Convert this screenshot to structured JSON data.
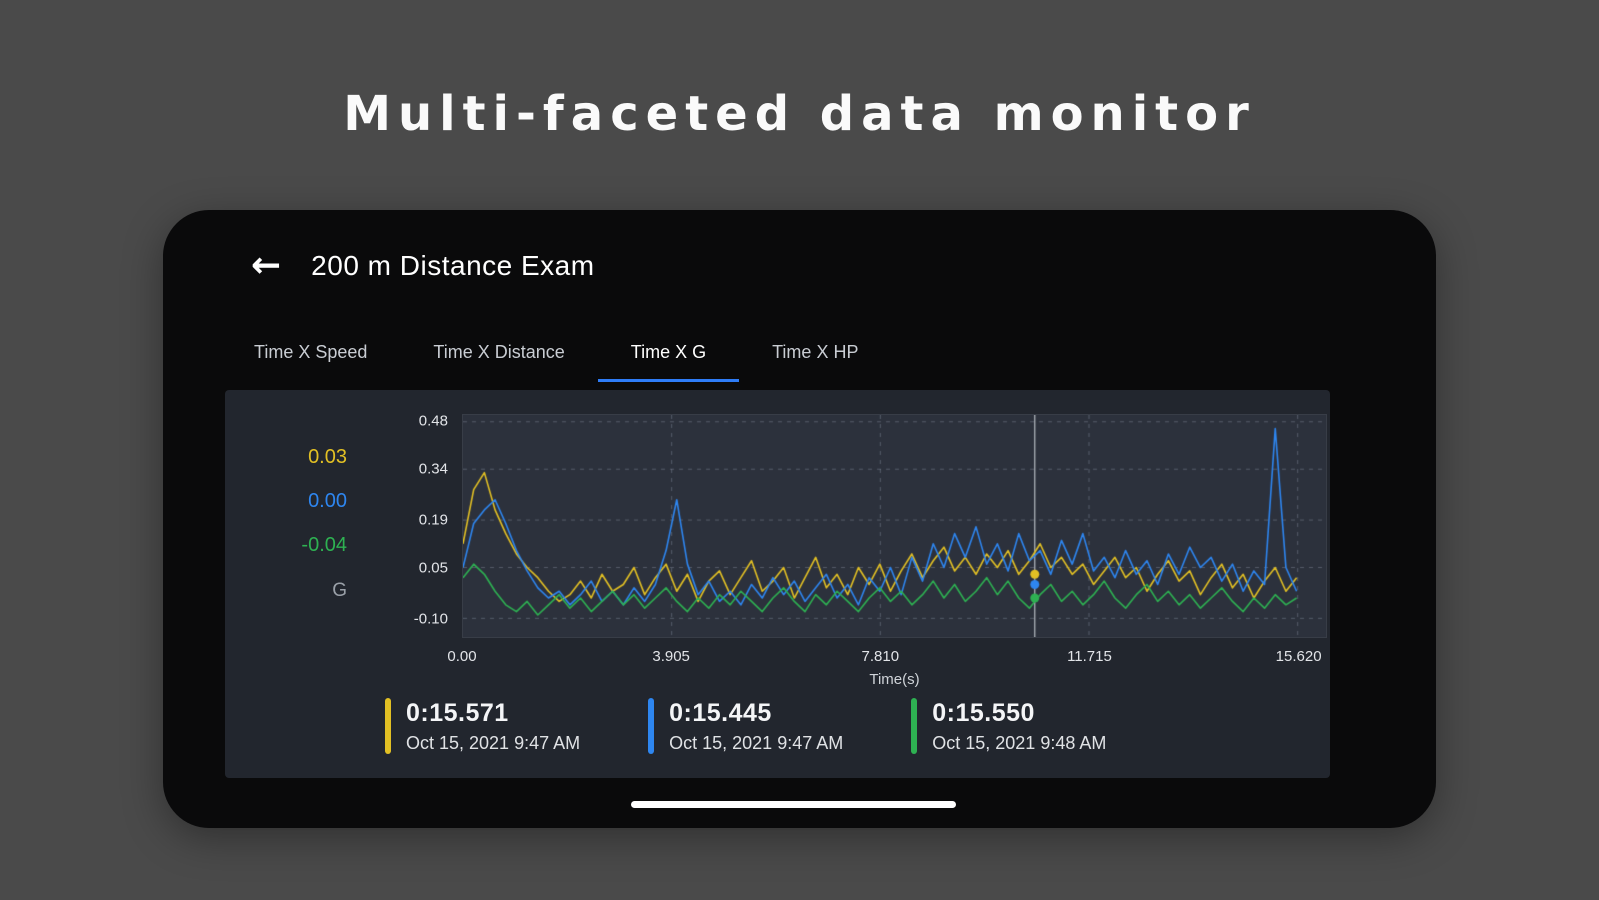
{
  "page": {
    "title": "Multi-faceted data monitor"
  },
  "phone": {
    "header": {
      "back_icon": "←",
      "title": "200 m Distance Exam"
    },
    "tabs": [
      {
        "label": "Time X Speed",
        "active": false
      },
      {
        "label": "Time X Distance",
        "active": false
      },
      {
        "label": "Time X G",
        "active": true
      },
      {
        "label": "Time X HP",
        "active": false
      }
    ],
    "tab_accent_color": "#2e7cf6",
    "readout": {
      "values": [
        {
          "label": "0.03",
          "color": "#e2c024"
        },
        {
          "label": "0.00",
          "color": "#2e86f0"
        },
        {
          "label": "-0.04",
          "color": "#2eb152"
        }
      ],
      "unit": "G"
    },
    "legend": [
      {
        "time": "0:15.571",
        "date": "Oct 15, 2021 9:47 AM",
        "color": "#e2c024"
      },
      {
        "time": "0:15.445",
        "date": "Oct 15, 2021 9:47 AM",
        "color": "#2e86f0"
      },
      {
        "time": "0:15.550",
        "date": "Oct 15, 2021 9:48 AM",
        "color": "#2eb152"
      }
    ]
  },
  "chart_data": {
    "type": "line",
    "title": "",
    "xlabel": "Time(s)",
    "ylabel": "G",
    "xlim": [
      0,
      16.15
    ],
    "ylim": [
      -0.155,
      0.5
    ],
    "grid": true,
    "legend_position": "bottom",
    "x_ticks": [
      0,
      3.905,
      7.81,
      11.715,
      15.62
    ],
    "x_tick_labels": [
      "0.00",
      "3.905",
      "7.810",
      "11.715",
      "15.620"
    ],
    "y_ticks": [
      0.48,
      0.34,
      0.19,
      0.05,
      -0.1
    ],
    "y_tick_labels": [
      "0.48",
      "0.34",
      "0.19",
      "0.05",
      "-0.10"
    ],
    "cursor_x": 10.7,
    "cursor_values": [
      0.03,
      0.0,
      -0.04
    ],
    "x_start": 0,
    "x_step": 0.2,
    "series": [
      {
        "name": "0:15.571",
        "color": "#e2c024",
        "values": [
          0.12,
          0.28,
          0.33,
          0.22,
          0.15,
          0.09,
          0.05,
          0.02,
          -0.02,
          -0.05,
          -0.03,
          0.01,
          -0.04,
          0.03,
          -0.02,
          0.0,
          0.05,
          -0.03,
          0.02,
          0.06,
          -0.02,
          0.03,
          -0.05,
          0.01,
          0.04,
          -0.03,
          0.02,
          0.07,
          -0.02,
          0.01,
          0.05,
          -0.04,
          0.02,
          0.08,
          -0.01,
          0.03,
          -0.03,
          0.05,
          0.0,
          0.06,
          -0.02,
          0.04,
          0.09,
          0.02,
          0.07,
          0.11,
          0.04,
          0.08,
          0.03,
          0.09,
          0.05,
          0.1,
          0.03,
          0.07,
          0.12,
          0.05,
          0.08,
          0.03,
          0.06,
          0.0,
          0.04,
          0.08,
          0.02,
          0.05,
          -0.02,
          0.03,
          0.07,
          0.01,
          0.04,
          -0.03,
          0.02,
          0.06,
          -0.01,
          0.03,
          -0.04,
          0.01,
          0.05,
          -0.02,
          0.02
        ]
      },
      {
        "name": "0:15.445",
        "color": "#2e86f0",
        "values": [
          0.05,
          0.18,
          0.22,
          0.25,
          0.18,
          0.1,
          0.04,
          -0.01,
          -0.04,
          -0.02,
          -0.06,
          -0.03,
          0.01,
          -0.05,
          -0.02,
          -0.06,
          -0.01,
          -0.05,
          0.0,
          0.1,
          0.25,
          0.06,
          -0.03,
          0.01,
          -0.05,
          -0.02,
          -0.06,
          0.0,
          -0.04,
          0.02,
          -0.03,
          0.01,
          -0.05,
          -0.01,
          0.03,
          -0.04,
          0.0,
          -0.06,
          0.02,
          -0.02,
          0.05,
          -0.03,
          0.08,
          0.01,
          0.12,
          0.05,
          0.15,
          0.08,
          0.17,
          0.06,
          0.12,
          0.04,
          0.15,
          0.07,
          0.1,
          0.03,
          0.13,
          0.06,
          0.15,
          0.04,
          0.08,
          0.02,
          0.1,
          0.03,
          0.07,
          0.0,
          0.09,
          0.03,
          0.11,
          0.05,
          0.08,
          0.01,
          0.06,
          -0.02,
          0.04,
          0.0,
          0.46,
          0.05,
          -0.02
        ]
      },
      {
        "name": "0:15.550",
        "color": "#2eb152",
        "values": [
          0.02,
          0.06,
          0.03,
          -0.02,
          -0.06,
          -0.08,
          -0.05,
          -0.09,
          -0.06,
          -0.03,
          -0.07,
          -0.04,
          -0.08,
          -0.05,
          -0.02,
          -0.06,
          -0.03,
          -0.07,
          -0.04,
          -0.01,
          -0.05,
          -0.08,
          -0.04,
          -0.07,
          -0.03,
          -0.06,
          -0.02,
          -0.05,
          -0.08,
          -0.04,
          -0.01,
          -0.05,
          -0.08,
          -0.03,
          -0.06,
          -0.02,
          -0.05,
          -0.08,
          -0.04,
          -0.01,
          -0.05,
          -0.02,
          -0.06,
          -0.03,
          0.01,
          -0.04,
          0.0,
          -0.05,
          -0.02,
          0.02,
          -0.03,
          0.01,
          -0.04,
          -0.07,
          -0.03,
          0.0,
          -0.05,
          -0.02,
          -0.06,
          -0.03,
          0.01,
          -0.04,
          -0.07,
          -0.03,
          0.0,
          -0.05,
          -0.02,
          -0.06,
          -0.03,
          -0.07,
          -0.04,
          -0.01,
          -0.05,
          -0.08,
          -0.04,
          -0.07,
          -0.03,
          -0.06,
          -0.04
        ]
      }
    ]
  }
}
